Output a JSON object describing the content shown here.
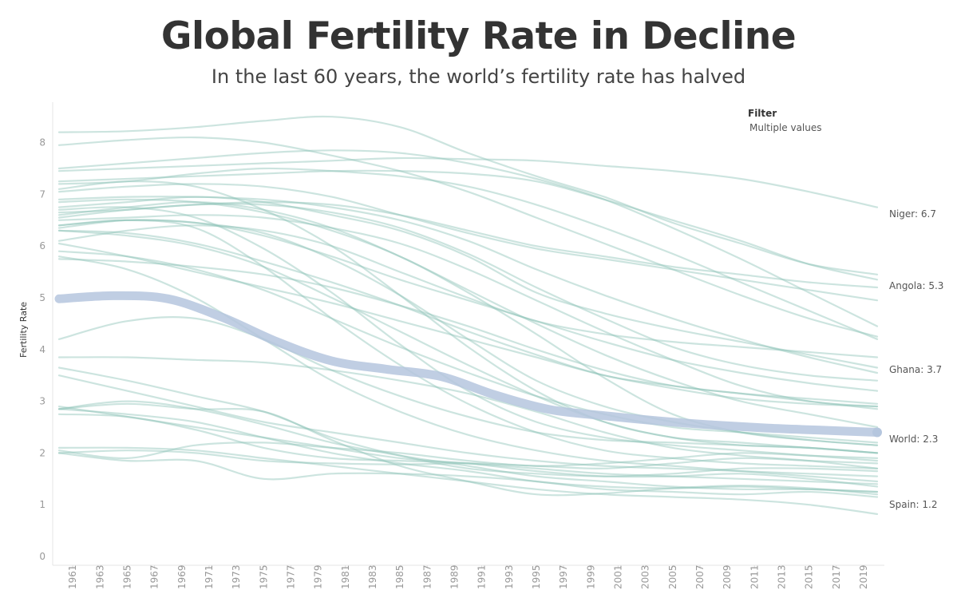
{
  "title": "Global Fertility Rate in Decline",
  "subtitle": "In the last 60 years, the world’s fertility rate has halved",
  "filter": {
    "label": "Filter",
    "value": "Multiple values"
  },
  "colors": {
    "country_line": "#8fc3b8",
    "world_line": "#b5c6de",
    "axis_text": "#999999",
    "label_text": "#555555"
  },
  "chart_data": {
    "type": "line",
    "ylabel": "Fertility Rate",
    "ylim": [
      0,
      8.8
    ],
    "xlim": [
      1960,
      2020
    ],
    "y_ticks": [
      0,
      1,
      2,
      3,
      4,
      5,
      6,
      7,
      8
    ],
    "x_ticks": [
      1961,
      1963,
      1965,
      1967,
      1969,
      1971,
      1973,
      1975,
      1977,
      1979,
      1981,
      1983,
      1985,
      1987,
      1989,
      1991,
      1993,
      1995,
      1997,
      1999,
      2001,
      2003,
      2005,
      2007,
      2009,
      2011,
      2013,
      2015,
      2017,
      2019
    ],
    "grid": false,
    "highlight": {
      "name": "World",
      "label": "World: 2.3",
      "x": [
        1960,
        1964,
        1968,
        1972,
        1976,
        1980,
        1984,
        1988,
        1992,
        1996,
        2000,
        2004,
        2008,
        2012,
        2016,
        2020
      ],
      "y": [
        4.98,
        5.04,
        4.98,
        4.62,
        4.15,
        3.78,
        3.62,
        3.48,
        3.12,
        2.84,
        2.72,
        2.62,
        2.54,
        2.48,
        2.44,
        2.4
      ]
    },
    "end_labels": [
      {
        "label": "Niger: 6.7",
        "value": 6.7
      },
      {
        "label": "Angola: 5.3",
        "value": 5.3
      },
      {
        "label": "Ghana: 3.7",
        "value": 3.7
      },
      {
        "label": "World: 2.3",
        "value": 2.3
      },
      {
        "label": "Spain: 1.2",
        "value": 1.2
      }
    ],
    "series_x": [
      1960,
      1965,
      1970,
      1975,
      1980,
      1985,
      1990,
      1995,
      2000,
      2005,
      2010,
      2015,
      2020
    ],
    "series": [
      {
        "name": "Niger",
        "values": [
          7.45,
          7.5,
          7.55,
          7.6,
          7.65,
          7.7,
          7.68,
          7.65,
          7.55,
          7.45,
          7.3,
          7.05,
          6.75
        ]
      },
      {
        "name": "Angola",
        "values": [
          7.25,
          7.3,
          7.35,
          7.4,
          7.45,
          7.45,
          7.4,
          7.25,
          6.9,
          6.5,
          6.1,
          5.65,
          5.35
        ]
      },
      {
        "name": "Ghana",
        "values": [
          6.75,
          6.85,
          6.95,
          6.85,
          6.6,
          6.3,
          5.8,
          5.1,
          4.7,
          4.4,
          4.15,
          3.9,
          3.65
        ]
      },
      {
        "name": "Spain",
        "values": [
          2.85,
          2.95,
          2.85,
          2.8,
          2.25,
          1.75,
          1.45,
          1.2,
          1.22,
          1.32,
          1.37,
          1.32,
          1.2
        ]
      },
      {
        "values": [
          8.2,
          8.22,
          8.3,
          8.42,
          8.5,
          8.3,
          7.8,
          7.35,
          6.95,
          6.45,
          6.05,
          5.65,
          5.45
        ]
      },
      {
        "values": [
          7.95,
          8.05,
          8.1,
          8.0,
          7.75,
          7.45,
          7.05,
          6.55,
          6.05,
          5.55,
          5.05,
          4.6,
          4.25
        ]
      },
      {
        "values": [
          7.5,
          7.6,
          7.7,
          7.8,
          7.85,
          7.8,
          7.6,
          7.3,
          6.9,
          6.35,
          5.75,
          5.1,
          4.45
        ]
      },
      {
        "values": [
          7.2,
          7.25,
          7.4,
          7.5,
          7.45,
          7.35,
          7.15,
          6.8,
          6.35,
          5.85,
          5.3,
          4.75,
          4.2
        ]
      },
      {
        "values": [
          6.65,
          6.7,
          6.8,
          6.8,
          6.65,
          6.35,
          5.85,
          5.2,
          4.6,
          4.05,
          3.7,
          3.5,
          3.4
        ]
      },
      {
        "values": [
          6.9,
          6.95,
          6.95,
          6.9,
          6.75,
          6.5,
          6.1,
          5.55,
          5.05,
          4.6,
          4.2,
          3.85,
          3.55
        ]
      },
      {
        "values": [
          6.5,
          6.55,
          6.6,
          6.55,
          6.35,
          6.05,
          5.55,
          4.95,
          4.35,
          3.8,
          3.3,
          3.0,
          2.9
        ]
      },
      {
        "values": [
          6.4,
          6.5,
          6.45,
          6.25,
          5.75,
          5.05,
          4.2,
          3.4,
          2.9,
          2.6,
          2.4,
          2.25,
          2.15
        ]
      },
      {
        "values": [
          6.85,
          6.9,
          6.85,
          6.65,
          6.3,
          5.8,
          5.1,
          4.3,
          3.45,
          2.75,
          2.4,
          2.25,
          2.15
        ]
      },
      {
        "values": [
          6.3,
          6.2,
          6.0,
          5.6,
          5.0,
          4.35,
          3.7,
          3.1,
          2.6,
          2.3,
          2.2,
          2.1,
          2.0
        ]
      },
      {
        "values": [
          6.6,
          6.75,
          6.85,
          6.7,
          6.35,
          5.8,
          5.15,
          4.5,
          3.9,
          3.4,
          3.0,
          2.75,
          2.5
        ]
      },
      {
        "values": [
          5.9,
          5.8,
          5.55,
          5.15,
          4.6,
          4.05,
          3.55,
          3.1,
          2.75,
          2.5,
          2.4,
          2.3,
          2.2
        ]
      },
      {
        "values": [
          5.75,
          5.7,
          5.6,
          5.45,
          5.2,
          4.85,
          4.45,
          4.0,
          3.6,
          3.3,
          3.15,
          3.0,
          2.85
        ]
      },
      {
        "values": [
          6.1,
          6.3,
          6.4,
          6.3,
          6.0,
          5.5,
          5.0,
          4.55,
          4.3,
          4.15,
          4.05,
          3.95,
          3.85
        ]
      },
      {
        "values": [
          6.4,
          6.5,
          6.35,
          5.6,
          4.6,
          3.7,
          2.95,
          2.4,
          2.05,
          1.9,
          1.8,
          1.75,
          1.7
        ]
      },
      {
        "values": [
          6.3,
          6.25,
          6.05,
          5.7,
          5.3,
          4.85,
          4.35,
          3.9,
          3.5,
          3.3,
          3.15,
          3.05,
          2.95
        ]
      },
      {
        "values": [
          7.1,
          7.25,
          7.15,
          6.7,
          6.0,
          5.05,
          4.05,
          3.2,
          2.6,
          2.3,
          2.15,
          2.1,
          2.0
        ]
      },
      {
        "values": [
          6.7,
          6.75,
          6.55,
          5.95,
          5.1,
          4.1,
          3.2,
          2.6,
          2.3,
          2.15,
          2.05,
          1.95,
          1.85
        ]
      },
      {
        "values": [
          5.8,
          5.55,
          5.0,
          4.2,
          3.4,
          2.8,
          2.35,
          2.05,
          1.85,
          1.75,
          1.65,
          1.55,
          1.45
        ]
      },
      {
        "values": [
          6.05,
          5.8,
          5.5,
          5.2,
          4.9,
          4.55,
          4.2,
          3.85,
          3.5,
          3.25,
          3.05,
          2.95,
          2.9
        ]
      },
      {
        "values": [
          4.2,
          4.55,
          4.6,
          4.2,
          3.6,
          3.1,
          2.7,
          2.4,
          2.25,
          2.2,
          2.15,
          2.1,
          2.0
        ]
      },
      {
        "values": [
          3.85,
          3.85,
          3.8,
          3.75,
          3.6,
          3.4,
          3.15,
          2.8,
          2.4,
          2.1,
          1.95,
          1.85,
          1.7
        ]
      },
      {
        "values": [
          3.5,
          3.2,
          2.9,
          2.6,
          2.4,
          2.2,
          2.0,
          1.85,
          1.75,
          1.7,
          1.65,
          1.6,
          1.55
        ]
      },
      {
        "values": [
          3.65,
          3.4,
          3.1,
          2.8,
          2.3,
          1.95,
          1.7,
          1.6,
          1.55,
          1.6,
          1.7,
          1.7,
          1.65
        ]
      },
      {
        "values": [
          2.75,
          2.7,
          2.45,
          2.1,
          1.9,
          1.85,
          1.8,
          1.7,
          1.6,
          1.55,
          1.5,
          1.45,
          1.4
        ]
      },
      {
        "values": [
          2.85,
          3.0,
          2.85,
          2.55,
          2.2,
          1.95,
          1.75,
          1.55,
          1.45,
          1.35,
          1.3,
          1.3,
          1.25
        ]
      },
      {
        "values": [
          2.05,
          1.9,
          2.15,
          2.2,
          2.1,
          2.0,
          1.85,
          1.75,
          1.8,
          1.9,
          2.0,
          1.95,
          1.9
        ]
      },
      {
        "values": [
          2.0,
          2.05,
          2.0,
          1.85,
          1.8,
          1.78,
          1.8,
          1.75,
          1.7,
          1.8,
          1.9,
          1.85,
          1.8
        ]
      },
      {
        "values": [
          2.0,
          1.85,
          1.85,
          1.5,
          1.6,
          1.6,
          1.55,
          1.45,
          1.3,
          1.25,
          1.2,
          1.25,
          1.15
        ]
      },
      {
        "values": [
          2.85,
          2.75,
          2.6,
          2.3,
          2.0,
          1.8,
          1.65,
          1.45,
          1.35,
          1.32,
          1.35,
          1.3,
          1.25
        ]
      },
      {
        "values": [
          2.9,
          2.7,
          2.5,
          2.3,
          2.1,
          1.9,
          1.8,
          1.65,
          1.55,
          1.55,
          1.6,
          1.5,
          1.35
        ]
      },
      {
        "values": [
          2.1,
          2.1,
          2.05,
          1.9,
          1.75,
          1.6,
          1.45,
          1.3,
          1.2,
          1.15,
          1.1,
          1.0,
          0.82
        ]
      },
      {
        "values": [
          6.35,
          6.5,
          6.45,
          6.2,
          5.8,
          5.35,
          4.95,
          4.55,
          4.15,
          3.8,
          3.55,
          3.35,
          3.2
        ]
      },
      {
        "values": [
          7.05,
          7.15,
          7.2,
          7.15,
          6.95,
          6.6,
          6.25,
          5.95,
          5.75,
          5.55,
          5.35,
          5.15,
          4.95
        ]
      },
      {
        "values": [
          6.55,
          6.7,
          6.8,
          6.85,
          6.8,
          6.6,
          6.3,
          6.0,
          5.8,
          5.6,
          5.45,
          5.3,
          5.2
        ]
      }
    ]
  }
}
